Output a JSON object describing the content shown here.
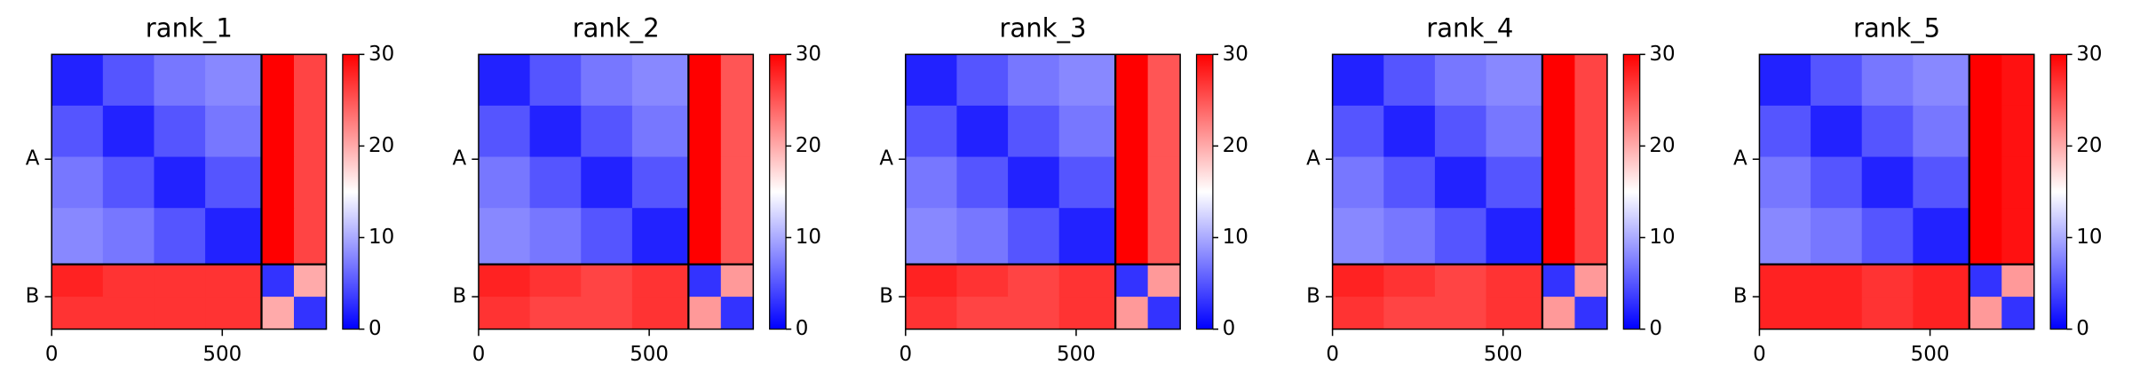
{
  "chart_data": [
    {
      "type": "heatmap",
      "title": "rank_1",
      "bins": [
        0,
        150,
        300,
        450,
        615,
        710,
        805
      ],
      "xlim": [
        0,
        805
      ],
      "xticks": [
        0,
        500
      ],
      "yticks": [
        {
          "value": 307,
          "label": "A"
        },
        {
          "value": 710,
          "label": "B"
        }
      ],
      "chain_breaks": [
        615
      ],
      "values": [
        [
          2,
          5,
          7,
          8,
          30,
          26
        ],
        [
          5,
          2,
          5,
          7,
          30,
          26
        ],
        [
          7,
          5,
          2,
          5,
          30,
          26
        ],
        [
          8,
          7,
          5,
          2,
          30,
          26
        ],
        [
          28,
          27,
          27,
          27,
          3,
          20
        ],
        [
          27,
          27,
          27,
          27,
          20,
          3
        ]
      ],
      "colormap": [
        "#0000ff",
        "#ffffff",
        "#ff0000"
      ],
      "clim": [
        0,
        30
      ],
      "cticks": [
        0,
        10,
        20,
        30
      ]
    },
    {
      "type": "heatmap",
      "title": "rank_2",
      "bins": [
        0,
        150,
        300,
        450,
        615,
        710,
        805
      ],
      "xlim": [
        0,
        805
      ],
      "xticks": [
        0,
        500
      ],
      "yticks": [
        {
          "value": 307,
          "label": "A"
        },
        {
          "value": 710,
          "label": "B"
        }
      ],
      "chain_breaks": [
        615
      ],
      "values": [
        [
          2,
          5,
          7,
          8,
          30,
          25
        ],
        [
          5,
          2,
          5,
          7,
          30,
          25
        ],
        [
          7,
          5,
          2,
          5,
          30,
          25
        ],
        [
          8,
          7,
          5,
          2,
          30,
          25
        ],
        [
          28,
          27,
          26,
          27,
          3,
          21
        ],
        [
          27,
          26,
          26,
          27,
          21,
          3
        ]
      ],
      "colormap": [
        "#0000ff",
        "#ffffff",
        "#ff0000"
      ],
      "clim": [
        0,
        30
      ],
      "cticks": [
        0,
        10,
        20,
        30
      ]
    },
    {
      "type": "heatmap",
      "title": "rank_3",
      "bins": [
        0,
        150,
        300,
        450,
        615,
        710,
        805
      ],
      "xlim": [
        0,
        805
      ],
      "xticks": [
        0,
        500
      ],
      "yticks": [
        {
          "value": 307,
          "label": "A"
        },
        {
          "value": 710,
          "label": "B"
        }
      ],
      "chain_breaks": [
        615
      ],
      "values": [
        [
          2,
          5,
          7,
          8,
          30,
          25
        ],
        [
          5,
          2,
          5,
          7,
          30,
          25
        ],
        [
          7,
          5,
          2,
          5,
          30,
          25
        ],
        [
          8,
          7,
          5,
          2,
          30,
          25
        ],
        [
          28,
          27,
          26,
          27,
          3,
          21
        ],
        [
          27,
          26,
          26,
          27,
          21,
          3
        ]
      ],
      "colormap": [
        "#0000ff",
        "#ffffff",
        "#ff0000"
      ],
      "clim": [
        0,
        30
      ],
      "cticks": [
        0,
        10,
        20,
        30
      ]
    },
    {
      "type": "heatmap",
      "title": "rank_4",
      "bins": [
        0,
        150,
        300,
        450,
        615,
        710,
        805
      ],
      "xlim": [
        0,
        805
      ],
      "xticks": [
        0,
        500
      ],
      "yticks": [
        {
          "value": 307,
          "label": "A"
        },
        {
          "value": 710,
          "label": "B"
        }
      ],
      "chain_breaks": [
        615
      ],
      "values": [
        [
          2,
          5,
          7,
          8,
          30,
          26
        ],
        [
          5,
          2,
          5,
          7,
          30,
          26
        ],
        [
          7,
          5,
          2,
          5,
          30,
          26
        ],
        [
          8,
          7,
          5,
          2,
          30,
          26
        ],
        [
          28,
          27,
          26,
          27,
          3,
          21
        ],
        [
          27,
          26,
          26,
          27,
          21,
          3
        ]
      ],
      "colormap": [
        "#0000ff",
        "#ffffff",
        "#ff0000"
      ],
      "clim": [
        0,
        30
      ],
      "cticks": [
        0,
        10,
        20,
        30
      ]
    },
    {
      "type": "heatmap",
      "title": "rank_5",
      "bins": [
        0,
        150,
        300,
        450,
        615,
        710,
        805
      ],
      "xlim": [
        0,
        805
      ],
      "xticks": [
        0,
        500
      ],
      "yticks": [
        {
          "value": 307,
          "label": "A"
        },
        {
          "value": 710,
          "label": "B"
        }
      ],
      "chain_breaks": [
        615
      ],
      "values": [
        [
          2,
          5,
          7,
          8,
          30,
          29
        ],
        [
          5,
          2,
          5,
          7,
          30,
          29
        ],
        [
          7,
          5,
          2,
          5,
          30,
          29
        ],
        [
          8,
          7,
          5,
          2,
          30,
          29
        ],
        [
          28,
          28,
          27,
          28,
          3,
          21
        ],
        [
          28,
          28,
          27,
          28,
          21,
          3
        ]
      ],
      "colormap": [
        "#0000ff",
        "#ffffff",
        "#ff0000"
      ],
      "clim": [
        0,
        30
      ],
      "cticks": [
        0,
        10,
        20,
        30
      ]
    }
  ]
}
